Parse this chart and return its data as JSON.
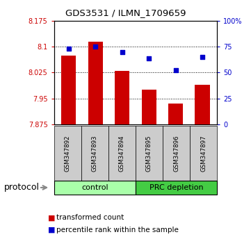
{
  "title": "GDS3531 / ILMN_1709659",
  "samples": [
    "GSM347892",
    "GSM347893",
    "GSM347894",
    "GSM347895",
    "GSM347896",
    "GSM347897"
  ],
  "bar_values": [
    8.075,
    8.115,
    8.03,
    7.975,
    7.935,
    7.99
  ],
  "scatter_values": [
    73,
    75,
    70,
    64,
    52,
    65
  ],
  "ylim_left": [
    7.875,
    8.175
  ],
  "ylim_right": [
    0,
    100
  ],
  "yticks_left": [
    7.875,
    7.95,
    8.025,
    8.1,
    8.175
  ],
  "ytick_labels_left": [
    "7.875",
    "7.95",
    "8.025",
    "8.1",
    "8.175"
  ],
  "yticks_right": [
    0,
    25,
    50,
    75,
    100
  ],
  "ytick_labels_right": [
    "0",
    "25",
    "50",
    "75",
    "100%"
  ],
  "bar_color": "#cc0000",
  "scatter_color": "#0000cc",
  "bar_bottom": 7.875,
  "ctrl_color": "#aaffaa",
  "prc_color": "#44cc44",
  "group_label": "protocol",
  "legend_bar_label": "transformed count",
  "legend_scatter_label": "percentile rank within the sample",
  "bar_width": 0.55,
  "background_color": "#ffffff",
  "sample_bg_color": "#cccccc"
}
